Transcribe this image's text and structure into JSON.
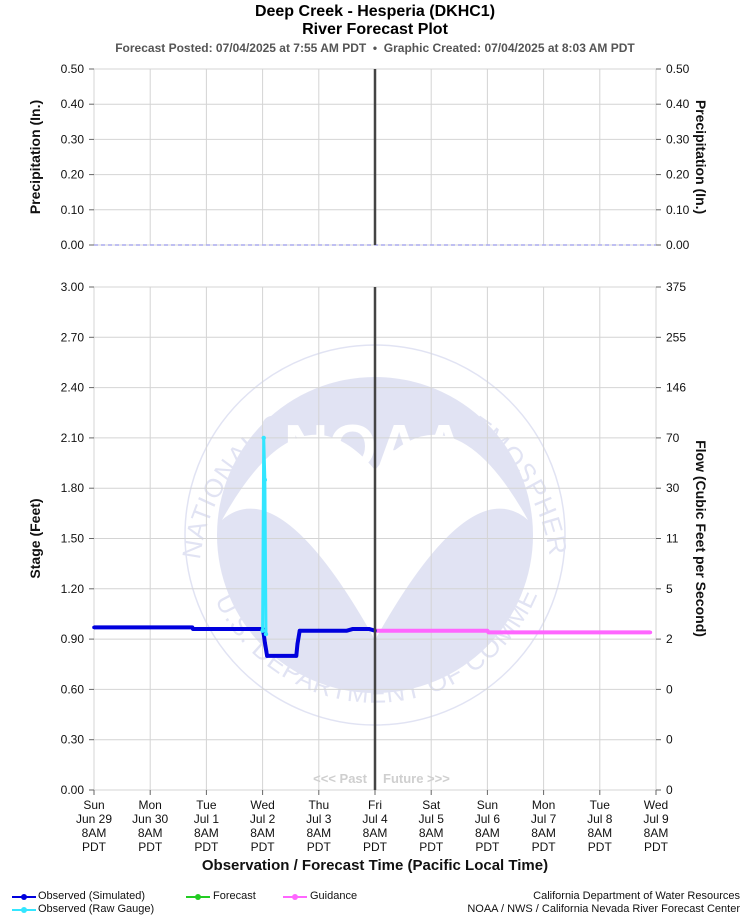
{
  "header": {
    "title": "Deep Creek - Hesperia (DKHC1)",
    "subtitle": "River Forecast Plot",
    "posted": "Forecast Posted: 07/04/2025 at 7:55 AM PDT",
    "separator": "•",
    "created": "Graphic Created: 07/04/2025 at 8:03 AM PDT"
  },
  "legend": {
    "observed_simulated": "Observed (Simulated)",
    "observed_raw": "Observed (Raw Gauge)",
    "forecast": "Forecast",
    "guidance": "Guidance"
  },
  "credits": {
    "line1": "California Department of Water Resources",
    "line2": "NOAA / NWS / California Nevada River Forecast Center"
  },
  "watermark": {
    "text": "NATIONAL OCEANIC AND ATMOSPHERIC ADMINISTRATION",
    "bottom_text": "U.S. DEPARTMENT OF COMMERCE",
    "logo": "NOAA"
  },
  "colors": {
    "observed_simulated": "#0000dd",
    "observed_raw": "#33e6ff",
    "forecast": "#22cc22",
    "guidance": "#ff66ff",
    "precip": "#aaaaee",
    "now_line": "#444444",
    "grid": "#d4d4d4"
  },
  "chart_data": [
    {
      "type": "line",
      "panel": "precipitation",
      "ylabel": "Precipitation (In.)",
      "ylabel_right": "Precipitation (In.)",
      "ylim": [
        0,
        0.5
      ],
      "yticks": [
        "0.00",
        "0.10",
        "0.20",
        "0.30",
        "0.40",
        "0.50"
      ],
      "grid": true,
      "series": [
        {
          "x": [
            0,
            1,
            2,
            3,
            4,
            5,
            6,
            7,
            8,
            9,
            10
          ],
          "y": [
            0,
            0,
            0,
            0,
            0,
            0,
            0,
            0,
            0,
            0,
            0
          ]
        }
      ]
    },
    {
      "type": "line",
      "panel": "stage",
      "ylabel": "Stage (Feet)",
      "ylabel_right": "Flow (Cubic Feet per Second)",
      "xlabel": "Observation / Forecast Time (Pacific Local Time)",
      "ylim": [
        0,
        3.0
      ],
      "yticks": [
        "0.00",
        "0.30",
        "0.60",
        "0.90",
        "1.20",
        "1.50",
        "1.80",
        "2.10",
        "2.40",
        "2.70",
        "3.00"
      ],
      "yticks_right": [
        "0",
        "0",
        "0",
        "2",
        "5",
        "11",
        "30",
        "70",
        "146",
        "255",
        "375"
      ],
      "grid": true,
      "x_categories": [
        [
          "Sun",
          "Jun 29",
          "8AM",
          "PDT"
        ],
        [
          "Mon",
          "Jun 30",
          "8AM",
          "PDT"
        ],
        [
          "Tue",
          "Jul 1",
          "8AM",
          "PDT"
        ],
        [
          "Wed",
          "Jul 2",
          "8AM",
          "PDT"
        ],
        [
          "Thu",
          "Jul 3",
          "8AM",
          "PDT"
        ],
        [
          "Fri",
          "Jul 4",
          "8AM",
          "PDT"
        ],
        [
          "Sat",
          "Jul 5",
          "8AM",
          "PDT"
        ],
        [
          "Sun",
          "Jul 6",
          "8AM",
          "PDT"
        ],
        [
          "Mon",
          "Jul 7",
          "8AM",
          "PDT"
        ],
        [
          "Tue",
          "Jul 8",
          "8AM",
          "PDT"
        ],
        [
          "Wed",
          "Jul 9",
          "8AM",
          "PDT"
        ]
      ],
      "now_index": 5,
      "past_label": "<<< Past",
      "future_label": "Future >>>",
      "series": [
        {
          "name": "Observed (Simulated)",
          "x": [
            0,
            1.75,
            1.76,
            3.0,
            3.02,
            3.04,
            3.08,
            3.6,
            3.62,
            3.66,
            4.0,
            4.5,
            4.6,
            4.9,
            5.0
          ],
          "y": [
            0.97,
            0.97,
            0.96,
            0.96,
            0.93,
            0.88,
            0.8,
            0.8,
            0.87,
            0.95,
            0.95,
            0.95,
            0.96,
            0.96,
            0.95
          ]
        },
        {
          "name": "Observed (Raw Gauge)",
          "x": [
            3.0,
            3.02,
            3.04,
            3.06
          ],
          "y": [
            0.95,
            2.1,
            1.85,
            0.93
          ]
        },
        {
          "name": "Forecast",
          "x": [],
          "y": []
        },
        {
          "name": "Guidance",
          "x": [
            5.0,
            7.0,
            7.02,
            9.9
          ],
          "y": [
            0.95,
            0.95,
            0.94,
            0.94
          ]
        }
      ]
    }
  ]
}
